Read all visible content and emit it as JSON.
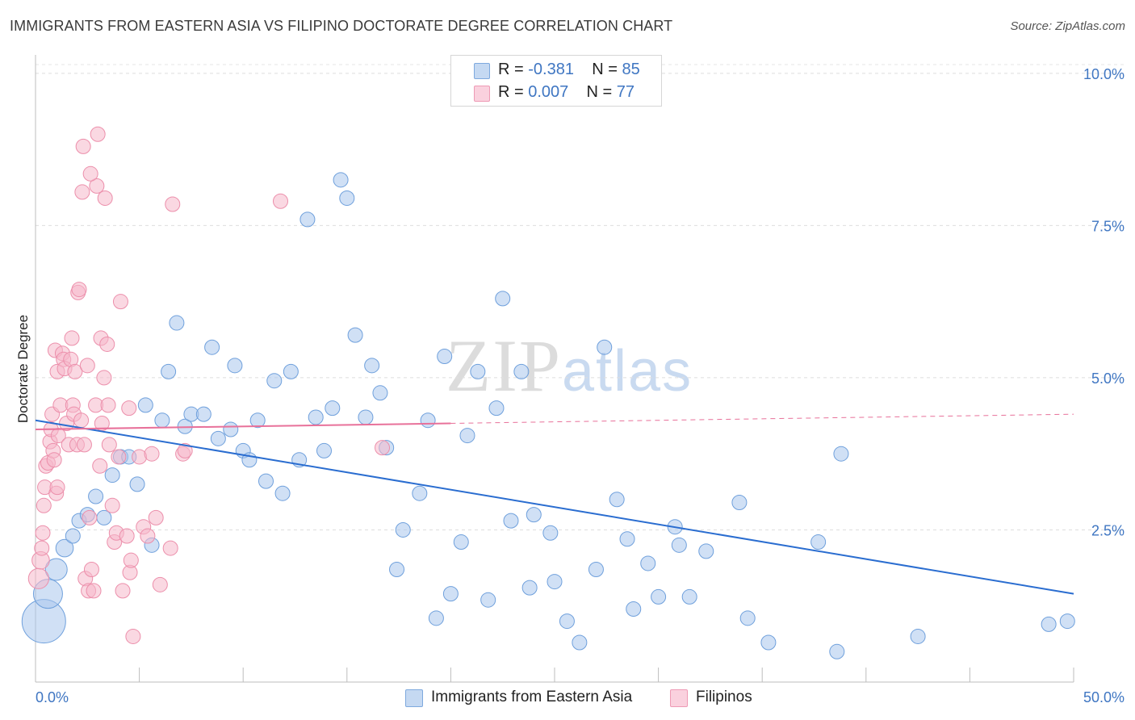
{
  "title": "IMMIGRANTS FROM EASTERN ASIA VS FILIPINO DOCTORATE DEGREE CORRELATION CHART",
  "source": "Source: ZipAtlas.com",
  "watermark": {
    "zip": "ZIP",
    "atlas": "atlas"
  },
  "legend": {
    "rows": [
      {
        "r_label": "R = ",
        "r_value": "-0.381",
        "n_label": "N = ",
        "n_value": "85",
        "color": "#a9c7ec"
      },
      {
        "r_label": "R = ",
        "r_value": "0.007",
        "n_label": "N = ",
        "n_value": "77",
        "color": "#f5b8cb"
      }
    ]
  },
  "bottom_legend": [
    {
      "label": "Immigrants from Eastern Asia",
      "color": "#a9c7ec"
    },
    {
      "label": "Filipinos",
      "color": "#f5b8cb"
    }
  ],
  "chart_data": {
    "type": "scatter",
    "title": "IMMIGRANTS FROM EASTERN ASIA VS FILIPINO DOCTORATE DEGREE CORRELATION CHART",
    "xlabel": "",
    "ylabel": "Doctorate Degree",
    "xlim": [
      0,
      50
    ],
    "ylim": [
      0,
      10.25
    ],
    "x_tick_labels": [
      "0.0%",
      "50.0%"
    ],
    "y_ticks": [
      2.5,
      5.0,
      7.5,
      10.0
    ],
    "y_tick_labels": [
      "2.5%",
      "5.0%",
      "7.5%",
      "10.0%"
    ],
    "grid": true,
    "series": [
      {
        "name": "Immigrants from Eastern Asia",
        "color": "#6fa0dc",
        "fill": "#a9c7ec",
        "trend": {
          "x": [
            0,
            50
          ],
          "y": [
            4.3,
            1.45
          ],
          "color": "#2a6dd0"
        },
        "points": [
          [
            0.4,
            1.0,
            3
          ],
          [
            0.6,
            1.45,
            2
          ],
          [
            1.0,
            1.85,
            1.5
          ],
          [
            1.4,
            2.2,
            1.2
          ],
          [
            1.8,
            2.4,
            1
          ],
          [
            2.1,
            2.65,
            1
          ],
          [
            2.5,
            2.75,
            1
          ],
          [
            2.9,
            3.05,
            1
          ],
          [
            3.3,
            2.7,
            1
          ],
          [
            3.7,
            3.4,
            1
          ],
          [
            4.1,
            3.7,
            1
          ],
          [
            4.5,
            3.7,
            1
          ],
          [
            4.9,
            3.25,
            1
          ],
          [
            5.3,
            4.55,
            1
          ],
          [
            5.6,
            2.25,
            1
          ],
          [
            6.1,
            4.3,
            1
          ],
          [
            6.4,
            5.1,
            1
          ],
          [
            6.8,
            5.9,
            1
          ],
          [
            7.2,
            4.2,
            1
          ],
          [
            7.5,
            4.4,
            1
          ],
          [
            8.1,
            4.4,
            1
          ],
          [
            8.5,
            5.5,
            1
          ],
          [
            8.8,
            4.0,
            1
          ],
          [
            9.4,
            4.15,
            1
          ],
          [
            9.6,
            5.2,
            1
          ],
          [
            10.0,
            3.8,
            1
          ],
          [
            10.3,
            3.65,
            1
          ],
          [
            10.7,
            4.3,
            1
          ],
          [
            11.1,
            3.3,
            1
          ],
          [
            11.5,
            4.95,
            1
          ],
          [
            11.9,
            3.1,
            1
          ],
          [
            12.3,
            5.1,
            1
          ],
          [
            12.7,
            3.65,
            1
          ],
          [
            13.1,
            7.6,
            1
          ],
          [
            13.5,
            4.35,
            1
          ],
          [
            13.9,
            3.8,
            1
          ],
          [
            14.3,
            4.5,
            1
          ],
          [
            14.7,
            8.25,
            1
          ],
          [
            15.0,
            7.95,
            1
          ],
          [
            15.4,
            5.7,
            1
          ],
          [
            15.9,
            4.35,
            1
          ],
          [
            16.2,
            5.2,
            1
          ],
          [
            16.6,
            4.75,
            1
          ],
          [
            16.9,
            3.85,
            1
          ],
          [
            17.4,
            1.85,
            1
          ],
          [
            17.7,
            2.5,
            1
          ],
          [
            18.5,
            3.1,
            1
          ],
          [
            18.9,
            4.3,
            1
          ],
          [
            19.3,
            1.05,
            1
          ],
          [
            19.7,
            5.35,
            1
          ],
          [
            20.0,
            1.45,
            1
          ],
          [
            20.5,
            2.3,
            1
          ],
          [
            20.8,
            4.05,
            1
          ],
          [
            21.3,
            5.1,
            1
          ],
          [
            21.8,
            1.35,
            1
          ],
          [
            22.2,
            4.5,
            1
          ],
          [
            22.5,
            6.3,
            1
          ],
          [
            22.9,
            2.65,
            1
          ],
          [
            23.4,
            5.1,
            1
          ],
          [
            23.8,
            1.55,
            1
          ],
          [
            24.0,
            2.75,
            1
          ],
          [
            24.8,
            2.45,
            1
          ],
          [
            25.0,
            1.65,
            1
          ],
          [
            25.6,
            1.0,
            1
          ],
          [
            26.2,
            0.65,
            1
          ],
          [
            27.0,
            1.85,
            1
          ],
          [
            27.4,
            5.5,
            1
          ],
          [
            28.0,
            3.0,
            1
          ],
          [
            28.5,
            2.35,
            1
          ],
          [
            28.8,
            1.2,
            1
          ],
          [
            29.5,
            1.95,
            1
          ],
          [
            30.0,
            1.4,
            1
          ],
          [
            30.8,
            2.55,
            1
          ],
          [
            31.0,
            2.25,
            1
          ],
          [
            31.5,
            1.4,
            1
          ],
          [
            32.3,
            2.15,
            1
          ],
          [
            33.9,
            2.95,
            1
          ],
          [
            34.3,
            1.05,
            1
          ],
          [
            35.3,
            0.65,
            1
          ],
          [
            37.7,
            2.3,
            1
          ],
          [
            38.6,
            0.5,
            1
          ],
          [
            38.8,
            3.75,
            1
          ],
          [
            42.5,
            0.75,
            1
          ],
          [
            48.8,
            0.95,
            1
          ],
          [
            49.7,
            1.0,
            1
          ]
        ]
      },
      {
        "name": "Filipinos",
        "color": "#ec8fab",
        "fill": "#f5b8cb",
        "trend": {
          "x": [
            0,
            20
          ],
          "y": [
            4.15,
            4.25
          ],
          "dash_to": [
            50,
            4.4
          ],
          "color": "#e8719a"
        },
        "points": [
          [
            0.15,
            1.7,
            1.4
          ],
          [
            0.25,
            2.0,
            1.2
          ],
          [
            0.3,
            2.2,
            1
          ],
          [
            0.35,
            2.45,
            1
          ],
          [
            0.4,
            2.9,
            1
          ],
          [
            0.45,
            3.2,
            1
          ],
          [
            0.5,
            3.55,
            1
          ],
          [
            0.6,
            3.6,
            1
          ],
          [
            0.7,
            3.95,
            1
          ],
          [
            0.75,
            4.15,
            1
          ],
          [
            0.8,
            4.4,
            1
          ],
          [
            0.85,
            3.8,
            1
          ],
          [
            0.9,
            3.65,
            1
          ],
          [
            0.95,
            5.45,
            1
          ],
          [
            1.0,
            3.1,
            1
          ],
          [
            1.05,
            5.1,
            1
          ],
          [
            1.1,
            4.05,
            1
          ],
          [
            1.2,
            4.55,
            1
          ],
          [
            1.3,
            5.4,
            1
          ],
          [
            1.35,
            5.3,
            1
          ],
          [
            1.4,
            5.15,
            1
          ],
          [
            1.5,
            4.25,
            1
          ],
          [
            1.6,
            3.9,
            1
          ],
          [
            1.7,
            5.3,
            1
          ],
          [
            1.75,
            5.65,
            1
          ],
          [
            1.8,
            4.55,
            1
          ],
          [
            1.85,
            4.4,
            1
          ],
          [
            1.9,
            5.1,
            1
          ],
          [
            2.0,
            3.9,
            1
          ],
          [
            2.05,
            6.4,
            1
          ],
          [
            2.1,
            6.45,
            1
          ],
          [
            2.2,
            4.3,
            1
          ],
          [
            2.3,
            8.8,
            1
          ],
          [
            2.35,
            3.9,
            1
          ],
          [
            2.4,
            1.7,
            1
          ],
          [
            2.5,
            5.2,
            1
          ],
          [
            2.55,
            1.5,
            1
          ],
          [
            2.6,
            2.7,
            1
          ],
          [
            2.7,
            1.85,
            1
          ],
          [
            2.8,
            1.5,
            1
          ],
          [
            2.9,
            4.55,
            1
          ],
          [
            2.95,
            8.15,
            1
          ],
          [
            3.0,
            9.0,
            1
          ],
          [
            3.1,
            3.55,
            1
          ],
          [
            3.15,
            5.65,
            1
          ],
          [
            3.2,
            4.25,
            1
          ],
          [
            3.3,
            5.0,
            1
          ],
          [
            3.35,
            7.95,
            1
          ],
          [
            3.45,
            5.55,
            1
          ],
          [
            3.5,
            4.55,
            1
          ],
          [
            3.55,
            3.9,
            1
          ],
          [
            3.7,
            2.9,
            1
          ],
          [
            3.8,
            2.3,
            1
          ],
          [
            3.9,
            2.45,
            1
          ],
          [
            4.0,
            3.7,
            1
          ],
          [
            4.1,
            6.25,
            1
          ],
          [
            4.2,
            1.5,
            1
          ],
          [
            4.4,
            2.4,
            1
          ],
          [
            4.5,
            4.5,
            1
          ],
          [
            4.55,
            1.8,
            1
          ],
          [
            4.6,
            2.0,
            1
          ],
          [
            4.7,
            0.75,
            1
          ],
          [
            5.0,
            3.7,
            1
          ],
          [
            5.2,
            2.55,
            1
          ],
          [
            5.4,
            2.4,
            1
          ],
          [
            5.6,
            3.75,
            1
          ],
          [
            5.8,
            2.7,
            1
          ],
          [
            6.0,
            1.6,
            1
          ],
          [
            6.5,
            2.2,
            1
          ],
          [
            6.6,
            7.85,
            1
          ],
          [
            7.1,
            3.75,
            1
          ],
          [
            7.2,
            3.8,
            1
          ],
          [
            2.65,
            8.35,
            1
          ],
          [
            2.25,
            8.05,
            1
          ],
          [
            11.8,
            7.9,
            1
          ],
          [
            16.7,
            3.85,
            1
          ],
          [
            1.05,
            3.2,
            1
          ]
        ]
      }
    ]
  }
}
